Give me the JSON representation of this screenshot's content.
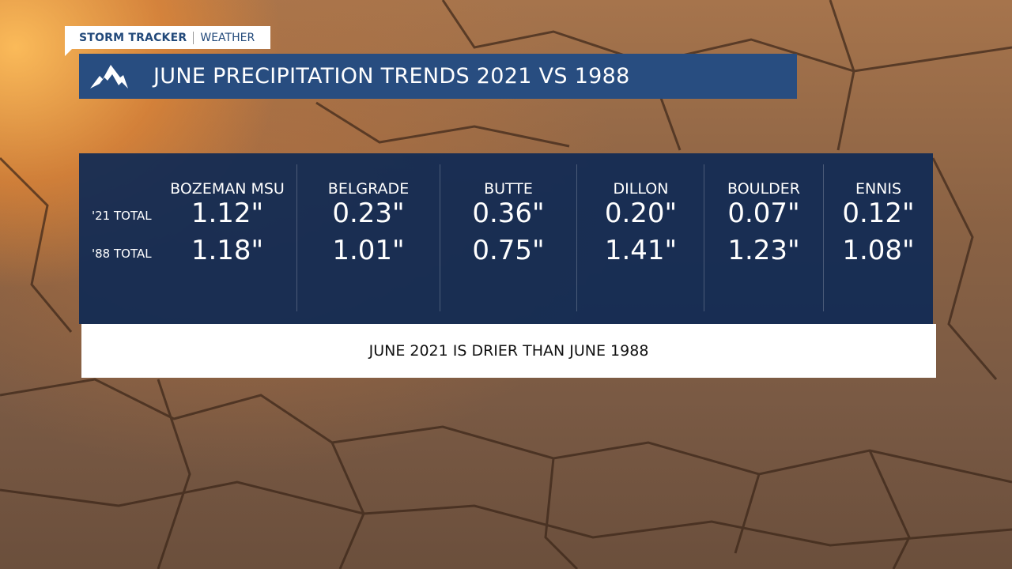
{
  "branding": {
    "brand": "STORM TRACKER",
    "section": "WEATHER"
  },
  "header": {
    "icon": "mountain-icon",
    "title": "JUNE PRECIPITATION TRENDS 2021 VS 1988"
  },
  "table": {
    "row_labels": [
      "'21 TOTAL",
      "'88 TOTAL"
    ],
    "columns": [
      {
        "name": "BOZEMAN MSU",
        "total_2021": "1.12\"",
        "total_1988": "1.18\""
      },
      {
        "name": "BELGRADE",
        "total_2021": "0.23\"",
        "total_1988": "1.01\""
      },
      {
        "name": "BUTTE",
        "total_2021": "0.36\"",
        "total_1988": "0.75\""
      },
      {
        "name": "DILLON",
        "total_2021": "0.20\"",
        "total_1988": "1.41\""
      },
      {
        "name": "BOULDER",
        "total_2021": "0.07\"",
        "total_1988": "1.23\""
      },
      {
        "name": "ENNIS",
        "total_2021": "0.12\"",
        "total_1988": "1.08\""
      }
    ]
  },
  "caption": "JUNE 2021 IS DRIER THAN JUNE 1988",
  "colors": {
    "title_bar": "#284d80",
    "panel": "#102a54",
    "brand_text": "#22497a"
  }
}
